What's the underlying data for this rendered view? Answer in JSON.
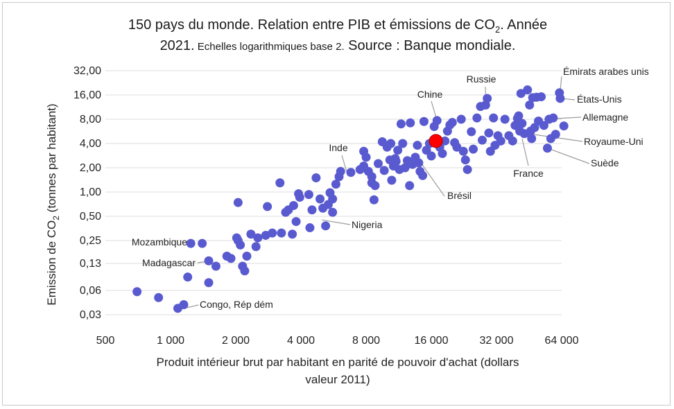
{
  "chart_data": {
    "type": "scatter",
    "title_line1": "150 pays du monde. Relation entre PIB et émissions de CO",
    "title_line1_sub": "2",
    "title_line1_end": ". Année",
    "title_line2_year": "2021.",
    "title_line2_small": " Echelles logarithmiques base 2.",
    "title_line2_source": " Source : Banque mondiale.",
    "ylabel_pre": "Emission de CO",
    "ylabel_sub": "2",
    "ylabel_post": " (tonnes par habitant)",
    "xlabel_line1": "Produit intérieur brut par habitant en parité de pouvoir d'achat (dollars",
    "xlabel_line2": "valeur 2011)",
    "x_scale": "log2",
    "y_scale": "log2",
    "xlim": [
      500,
      64000
    ],
    "ylim": [
      0.03,
      32
    ],
    "x_ticks": [
      500,
      1000,
      2000,
      4000,
      8000,
      16000,
      32000,
      64000
    ],
    "x_tick_labels": [
      "500",
      "1 000",
      "2 000",
      "4 000",
      "8 000",
      "16 000",
      "32 000",
      "64 000"
    ],
    "y_ticks": [
      0.03,
      0.06,
      0.13,
      0.25,
      0.5,
      1,
      2,
      4,
      8,
      16,
      32
    ],
    "y_tick_labels": [
      "0,03",
      "0,06",
      "0,13",
      "0,25",
      "0,50",
      "1,00",
      "2,00",
      "4,00",
      "8,00",
      "16,00",
      "32,00"
    ],
    "grid": "horizontal",
    "marker_color": "#5a5ad0",
    "highlight_color": "#ff0000",
    "highlight": {
      "x": 16800,
      "y": 4.3
    },
    "labels": [
      {
        "text": "Mozambique",
        "x": 1240,
        "y": 0.23
      },
      {
        "text": "Madagascar",
        "x": 1550,
        "y": 0.14
      },
      {
        "text": "Congo, Rép dém",
        "x": 1100,
        "y": 0.035
      },
      {
        "text": "Inde",
        "x": 6500,
        "y": 1.8
      },
      {
        "text": "Nigeria",
        "x": 5000,
        "y": 0.45
      },
      {
        "text": "Chine",
        "x": 17000,
        "y": 7.7
      },
      {
        "text": "Brésil",
        "x": 14500,
        "y": 2.2
      },
      {
        "text": "Russie",
        "x": 28500,
        "y": 13.5
      },
      {
        "text": "France",
        "x": 42000,
        "y": 4.6
      },
      {
        "text": "Émirats arabes unis",
        "x": 63000,
        "y": 18
      },
      {
        "text": "États-Unis",
        "x": 63000,
        "y": 14.5
      },
      {
        "text": "Allemagne",
        "x": 53000,
        "y": 8
      },
      {
        "text": "Royaume-Uni",
        "x": 47000,
        "y": 5.2
      },
      {
        "text": "Suède",
        "x": 55000,
        "y": 3.5
      }
    ],
    "points": [
      [
        700,
        0.058
      ],
      [
        880,
        0.049
      ],
      [
        1080,
        0.036
      ],
      [
        1150,
        0.04
      ],
      [
        1200,
        0.088
      ],
      [
        1240,
        0.23
      ],
      [
        1400,
        0.23
      ],
      [
        1500,
        0.14
      ],
      [
        1500,
        0.075
      ],
      [
        1620,
        0.12
      ],
      [
        1820,
        0.16
      ],
      [
        1900,
        0.15
      ],
      [
        2020,
        0.27
      ],
      [
        2050,
        0.25
      ],
      [
        2050,
        0.74
      ],
      [
        2100,
        0.22
      ],
      [
        2150,
        0.12
      ],
      [
        2200,
        0.105
      ],
      [
        2250,
        0.16
      ],
      [
        2350,
        0.3
      ],
      [
        2480,
        0.21
      ],
      [
        2530,
        0.27
      ],
      [
        2750,
        0.29
      ],
      [
        2800,
        0.66
      ],
      [
        2950,
        0.31
      ],
      [
        3200,
        1.3
      ],
      [
        3250,
        0.31
      ],
      [
        3400,
        0.56
      ],
      [
        3500,
        0.6
      ],
      [
        3650,
        0.3
      ],
      [
        3700,
        0.68
      ],
      [
        3800,
        0.43
      ],
      [
        3900,
        0.95
      ],
      [
        3950,
        0.86
      ],
      [
        4350,
        0.93
      ],
      [
        4400,
        0.36
      ],
      [
        4500,
        0.6
      ],
      [
        4700,
        1.5
      ],
      [
        4900,
        0.82
      ],
      [
        5050,
        0.63
      ],
      [
        5200,
        0.38
      ],
      [
        5350,
        0.7
      ],
      [
        5450,
        0.98
      ],
      [
        5600,
        0.56
      ],
      [
        5600,
        0.82
      ],
      [
        5800,
        1.25
      ],
      [
        6000,
        1.55
      ],
      [
        6100,
        1.8
      ],
      [
        6800,
        1.75
      ],
      [
        7500,
        1.9
      ],
      [
        7800,
        2.1
      ],
      [
        7800,
        3.2
      ],
      [
        8000,
        2.7
      ],
      [
        8200,
        1.8
      ],
      [
        8500,
        1.3
      ],
      [
        8500,
        1.55
      ],
      [
        8700,
        0.8
      ],
      [
        8800,
        1.2
      ],
      [
        9100,
        2.25
      ],
      [
        9500,
        4.2
      ],
      [
        9700,
        1.85
      ],
      [
        10000,
        3.6
      ],
      [
        10300,
        2.5
      ],
      [
        10400,
        4.0
      ],
      [
        10500,
        1.4
      ],
      [
        10700,
        2.1
      ],
      [
        10900,
        2.6
      ],
      [
        11000,
        2.4
      ],
      [
        11200,
        3.3
      ],
      [
        11400,
        1.9
      ],
      [
        11600,
        7.0
      ],
      [
        11800,
        4.0
      ],
      [
        12100,
        2.0
      ],
      [
        12400,
        2.45
      ],
      [
        12700,
        1.2
      ],
      [
        12800,
        7.2
      ],
      [
        13100,
        2.2
      ],
      [
        13500,
        2.7
      ],
      [
        13800,
        3.8
      ],
      [
        14000,
        2.3
      ],
      [
        14200,
        1.8
      ],
      [
        14600,
        1.6
      ],
      [
        14800,
        7.5
      ],
      [
        15200,
        3.3
      ],
      [
        15700,
        4.0
      ],
      [
        16000,
        2.8
      ],
      [
        16500,
        6.5
      ],
      [
        17000,
        7.7
      ],
      [
        17500,
        3.6
      ],
      [
        18000,
        3.0
      ],
      [
        18500,
        4.3
      ],
      [
        19000,
        5.7
      ],
      [
        19500,
        6.8
      ],
      [
        20000,
        7.3
      ],
      [
        20500,
        4.1
      ],
      [
        21000,
        3.6
      ],
      [
        22500,
        3.2
      ],
      [
        22000,
        8.0
      ],
      [
        23000,
        2.5
      ],
      [
        23500,
        1.9
      ],
      [
        24500,
        5.6
      ],
      [
        25000,
        3.4
      ],
      [
        26000,
        8.3
      ],
      [
        27000,
        11.5
      ],
      [
        27500,
        4.4
      ],
      [
        28500,
        12.0
      ],
      [
        29000,
        14.5
      ],
      [
        29500,
        5.4
      ],
      [
        30000,
        3.2
      ],
      [
        31000,
        8.3
      ],
      [
        31500,
        3.8
      ],
      [
        32500,
        5.0
      ],
      [
        33500,
        4.3
      ],
      [
        35000,
        8.0
      ],
      [
        36500,
        5.0
      ],
      [
        38000,
        4.3
      ],
      [
        39000,
        6.7
      ],
      [
        40000,
        8.2
      ],
      [
        40500,
        8.8
      ],
      [
        41000,
        5.7
      ],
      [
        41500,
        16.7
      ],
      [
        42000,
        7.1
      ],
      [
        43000,
        5.3
      ],
      [
        44500,
        18.5
      ],
      [
        45500,
        12.0
      ],
      [
        46000,
        5.7
      ],
      [
        46500,
        4.6
      ],
      [
        47000,
        14.8
      ],
      [
        48000,
        6.3
      ],
      [
        49000,
        15.0
      ],
      [
        50000,
        7.6
      ],
      [
        51500,
        15.2
      ],
      [
        53000,
        6.7
      ],
      [
        55000,
        3.5
      ],
      [
        56000,
        8.0
      ],
      [
        57000,
        4.6
      ],
      [
        58500,
        8.3
      ],
      [
        60000,
        5.2
      ],
      [
        62500,
        17.0
      ],
      [
        63000,
        14.5
      ],
      [
        65500,
        6.6
      ]
    ]
  }
}
